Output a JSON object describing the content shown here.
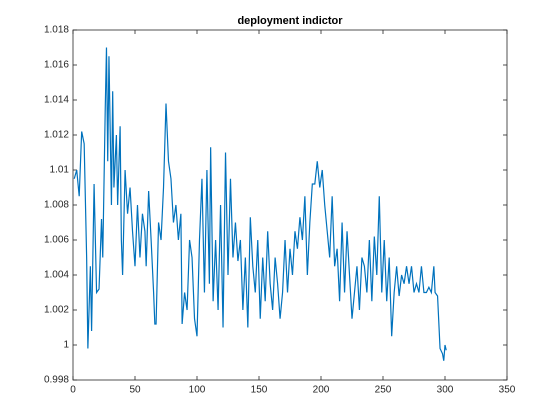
{
  "chart_data": {
    "type": "line",
    "title": "deployment indictor",
    "x": [
      1,
      3,
      5,
      7,
      9,
      11,
      12,
      14,
      15,
      17,
      19,
      21,
      23,
      24,
      26,
      27,
      28,
      29,
      31,
      32,
      33,
      35,
      36,
      38,
      39,
      40,
      42,
      44,
      46,
      48,
      50,
      52,
      54,
      56,
      58,
      59,
      61,
      63,
      65,
      66,
      67,
      69,
      71,
      73,
      75,
      77,
      79,
      81,
      83,
      85,
      87,
      88,
      90,
      92,
      94,
      96,
      98,
      100,
      102,
      104,
      106,
      108,
      110,
      111,
      113,
      115,
      117,
      119,
      121,
      123,
      125,
      127,
      129,
      131,
      133,
      135,
      137,
      139,
      141,
      143,
      145,
      147,
      149,
      151,
      153,
      155,
      157,
      159,
      161,
      163,
      165,
      167,
      169,
      171,
      173,
      175,
      177,
      179,
      181,
      183,
      185,
      187,
      189,
      191,
      193,
      195,
      197,
      199,
      201,
      203,
      205,
      207,
      209,
      211,
      213,
      215,
      217,
      219,
      221,
      223,
      225,
      227,
      229,
      231,
      233,
      235,
      237,
      239,
      241,
      243,
      245,
      247,
      249,
      251,
      253,
      255,
      257,
      259,
      261,
      263,
      265,
      267,
      269,
      271,
      273,
      275,
      277,
      279,
      281,
      283,
      285,
      287,
      289,
      291,
      292,
      294,
      296,
      298,
      299,
      300,
      301
    ],
    "series": [
      {
        "color": "#0072bd",
        "values": [
          1.0095,
          1.01,
          1.0085,
          1.0122,
          1.0115,
          1.005,
          0.9998,
          1.0045,
          1.0008,
          1.0092,
          1.003,
          1.0032,
          1.0072,
          1.005,
          1.0135,
          1.017,
          1.0105,
          1.0165,
          1.008,
          1.0145,
          1.009,
          1.012,
          1.008,
          1.0125,
          1.006,
          1.004,
          1.01,
          1.0075,
          1.009,
          1.0065,
          1.0045,
          1.008,
          1.005,
          1.0075,
          1.0065,
          1.0045,
          1.0088,
          1.006,
          1.003,
          1.0012,
          1.0012,
          1.007,
          1.006,
          1.009,
          1.0138,
          1.0105,
          1.0095,
          1.007,
          1.008,
          1.006,
          1.0075,
          1.0012,
          1.003,
          1.002,
          1.006,
          1.005,
          1.0015,
          1.0005,
          1.006,
          1.0095,
          1.003,
          1.01,
          1.0035,
          1.0113,
          1.0025,
          1.006,
          1.002,
          1.008,
          1.001,
          1.011,
          1.004,
          1.0095,
          1.005,
          1.007,
          1.0048,
          1.006,
          1.002,
          1.005,
          1.001,
          1.0073,
          1.0045,
          1.003,
          1.006,
          1.0015,
          1.005,
          1.0025,
          1.0065,
          1.0035,
          1.002,
          1.005,
          1.0035,
          1.0015,
          1.003,
          1.006,
          1.003,
          1.0055,
          1.004,
          1.0065,
          1.0055,
          1.0073,
          1.006,
          1.0085,
          1.004,
          1.007,
          1.0092,
          1.0092,
          1.0105,
          1.009,
          1.01,
          1.008,
          1.0065,
          1.005,
          1.0085,
          1.0045,
          1.0055,
          1.0025,
          1.007,
          1.003,
          1.0065,
          1.004,
          1.0015,
          1.003,
          1.0045,
          1.002,
          1.005,
          1.0045,
          1.003,
          1.006,
          1.0025,
          1.0062,
          1.004,
          1.0085,
          1.003,
          1.006,
          1.0025,
          1.005,
          1.0005,
          1.003,
          1.0045,
          1.0028,
          1.004,
          1.0035,
          1.0045,
          1.0035,
          1.0045,
          1.003,
          1.0035,
          1.003,
          1.0045,
          1.003,
          1.003,
          1.0033,
          1.003,
          1.0045,
          1.003,
          1.0028,
          0.9998,
          0.9995,
          0.9991,
          1.0,
          0.9997
        ]
      }
    ],
    "xlim": [
      0,
      350
    ],
    "xticks": [
      0,
      50,
      100,
      150,
      200,
      250,
      300,
      350
    ],
    "ylim": [
      0.998,
      1.018
    ],
    "yticks": [
      0.998,
      1,
      1.002,
      1.004,
      1.006,
      1.008,
      1.01,
      1.012,
      1.014,
      1.016,
      1.018
    ]
  }
}
